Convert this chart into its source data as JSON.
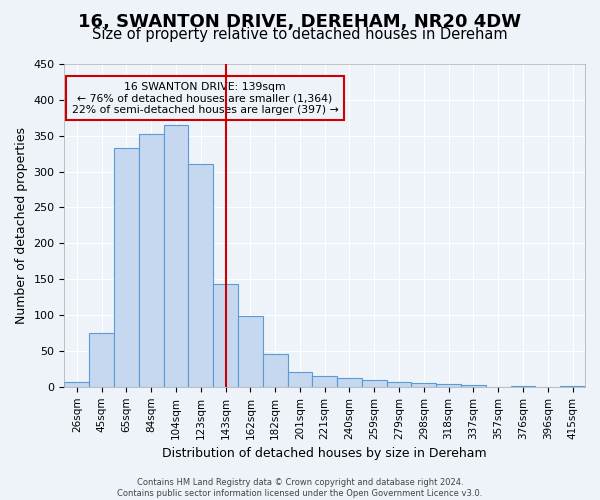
{
  "title": "16, SWANTON DRIVE, DEREHAM, NR20 4DW",
  "subtitle": "Size of property relative to detached houses in Dereham",
  "xlabel": "Distribution of detached houses by size in Dereham",
  "ylabel": "Number of detached properties",
  "bar_labels": [
    "26sqm",
    "45sqm",
    "65sqm",
    "84sqm",
    "104sqm",
    "123sqm",
    "143sqm",
    "162sqm",
    "182sqm",
    "201sqm",
    "221sqm",
    "240sqm",
    "259sqm",
    "279sqm",
    "298sqm",
    "318sqm",
    "337sqm",
    "357sqm",
    "376sqm",
    "396sqm",
    "415sqm"
  ],
  "bar_values": [
    7,
    75,
    333,
    353,
    365,
    310,
    143,
    99,
    46,
    20,
    15,
    12,
    10,
    7,
    5,
    4,
    2,
    0,
    1,
    0,
    1
  ],
  "bar_color": "#c5d8f0",
  "bar_edge_color": "#5b9bd5",
  "property_line_label": "16 SWANTON DRIVE: 139sqm",
  "annotation_line1": "← 76% of detached houses are smaller (1,364)",
  "annotation_line2": "22% of semi-detached houses are larger (397) →",
  "vline_color": "#cc0000",
  "box_edge_color": "#cc0000",
  "vline_index": 6.0,
  "ylim": [
    0,
    450
  ],
  "yticks": [
    0,
    50,
    100,
    150,
    200,
    250,
    300,
    350,
    400,
    450
  ],
  "footer_line1": "Contains HM Land Registry data © Crown copyright and database right 2024.",
  "footer_line2": "Contains public sector information licensed under the Open Government Licence v3.0.",
  "bg_color": "#eef2f9",
  "grid_color": "#ffffff",
  "title_fontsize": 13,
  "subtitle_fontsize": 10.5
}
